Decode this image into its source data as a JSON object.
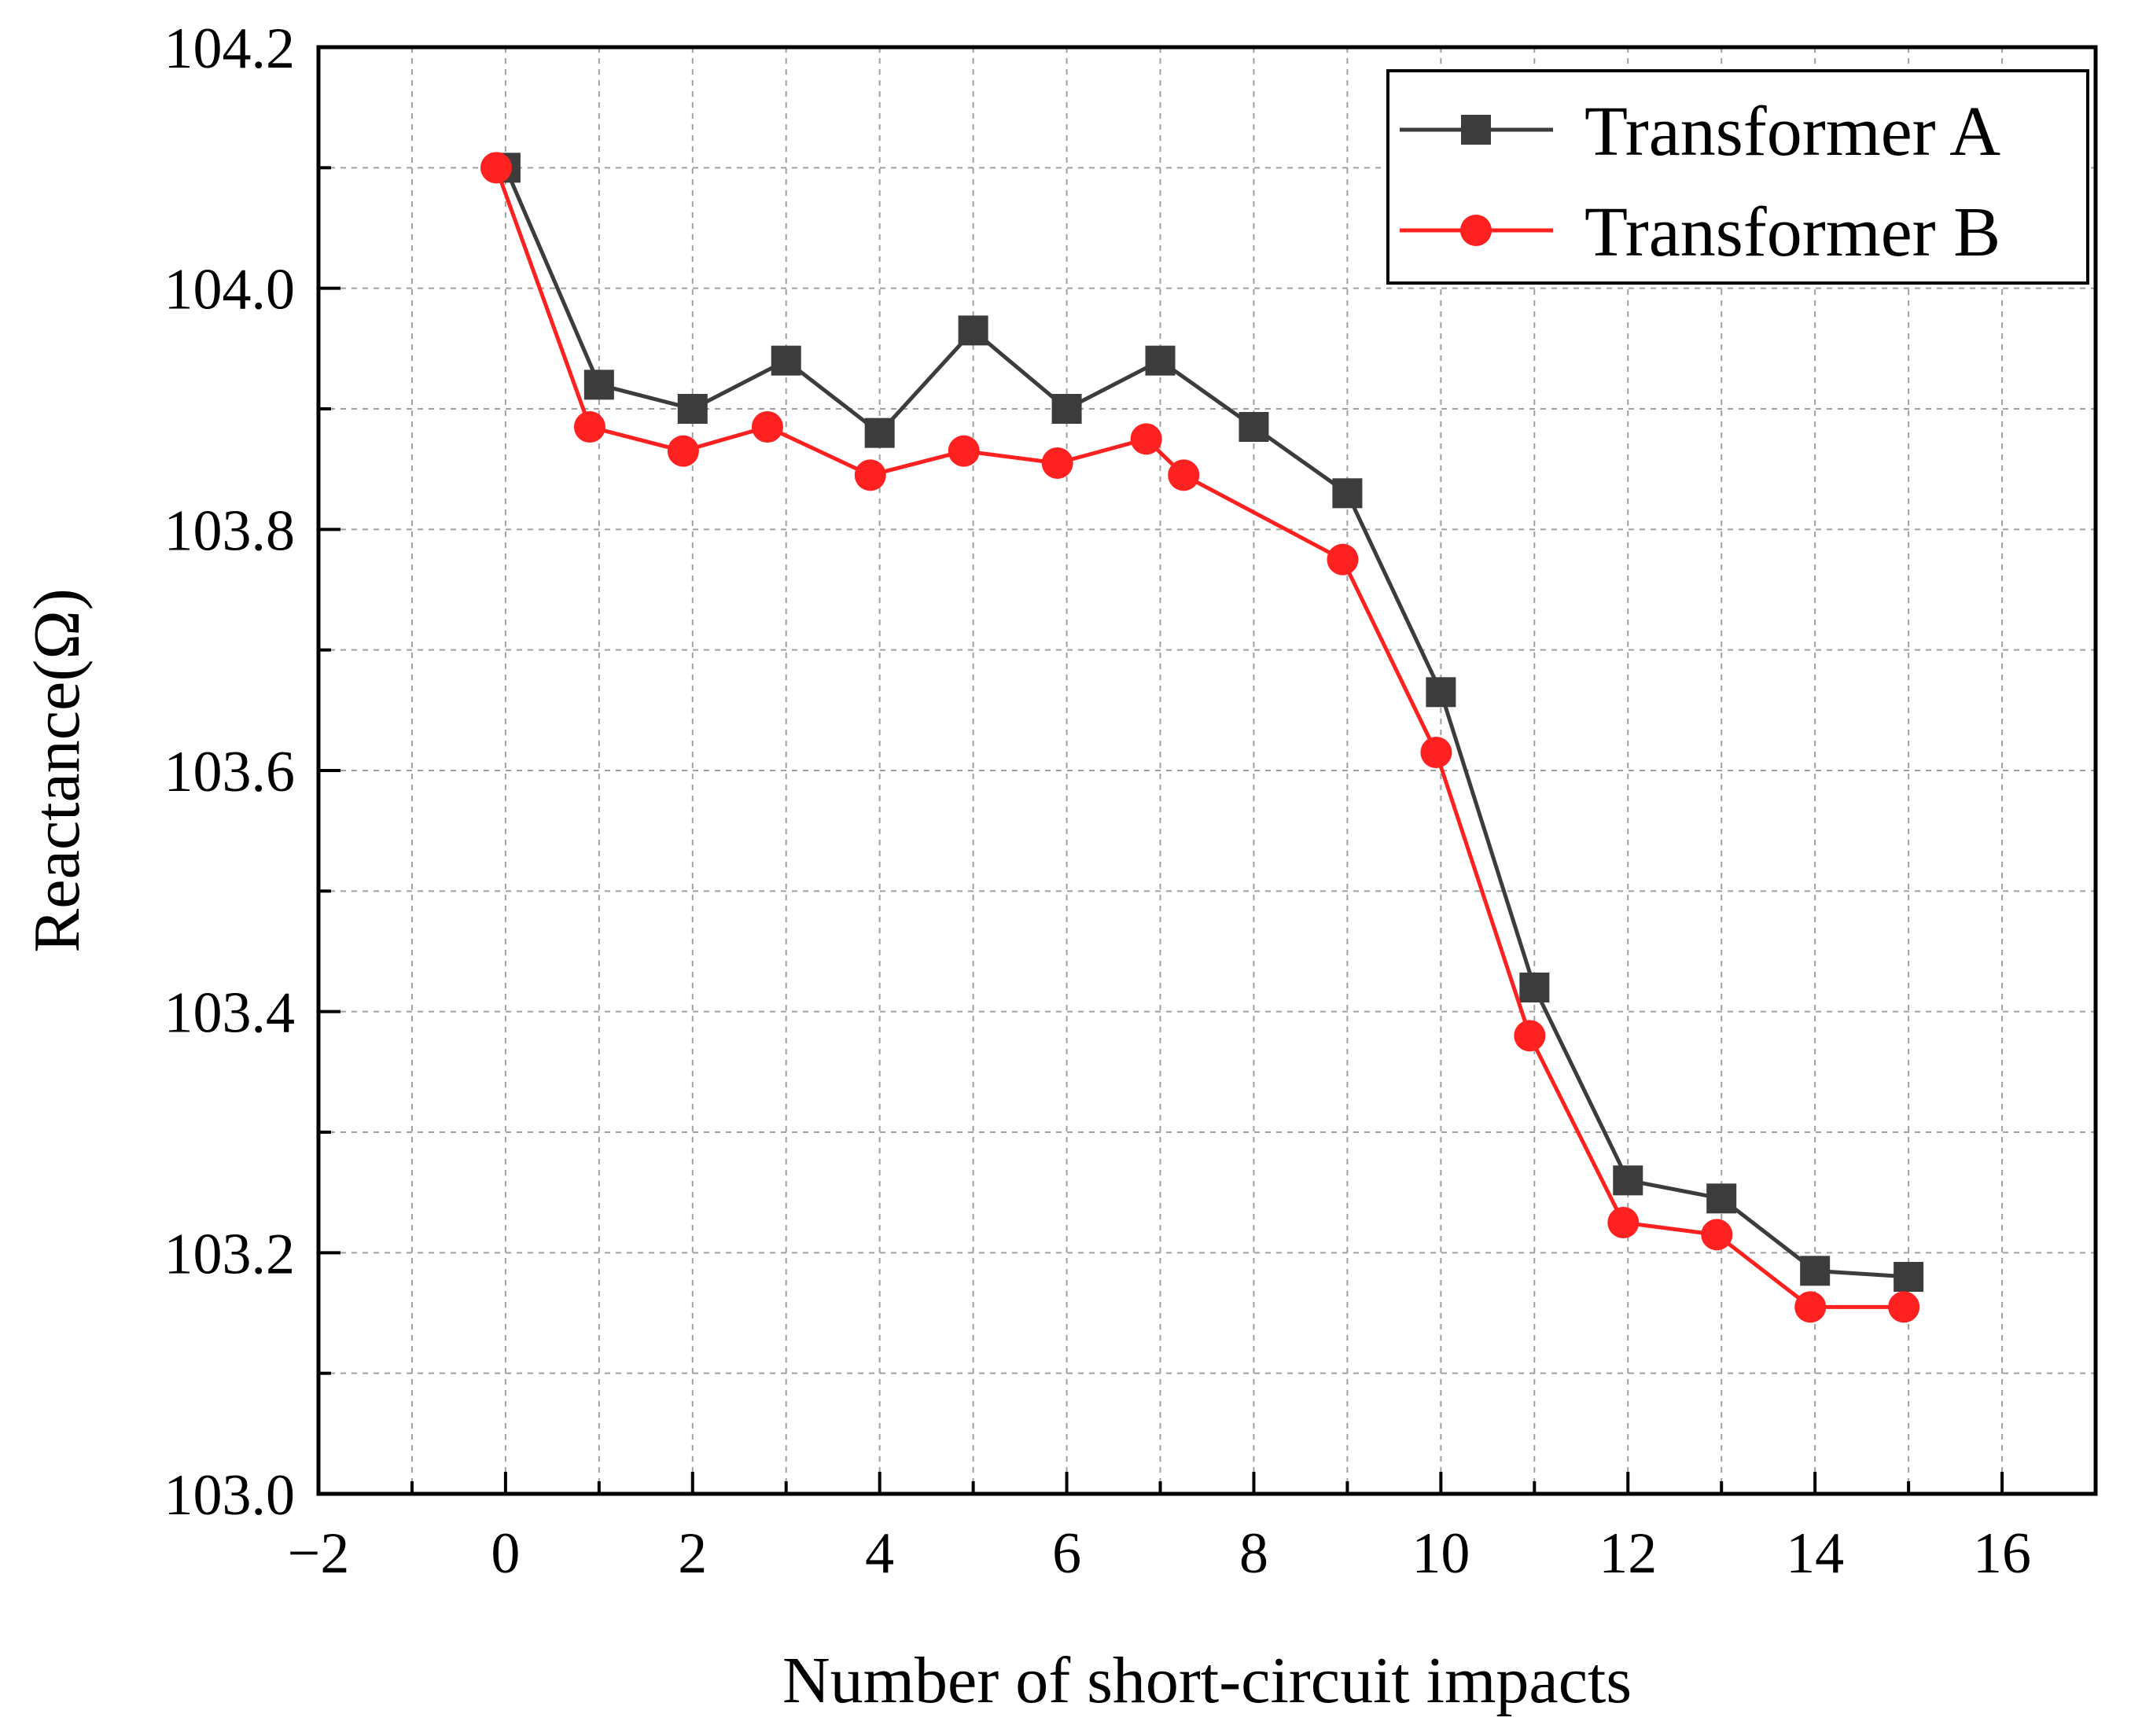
{
  "chart_data": {
    "type": "line",
    "title": "",
    "xlabel": "Number of short-circuit impacts",
    "ylabel": "Reactance(Ω)",
    "xlim": [
      -2,
      17
    ],
    "ylim": [
      103.0,
      104.2
    ],
    "xticks": [
      -2,
      0,
      2,
      4,
      6,
      8,
      10,
      12,
      14,
      16
    ],
    "xtick_labels": [
      "−2",
      "0",
      "2",
      "4",
      "6",
      "8",
      "10",
      "12",
      "14",
      "16"
    ],
    "xminor": [
      -1,
      1,
      3,
      5,
      7,
      9,
      11,
      13,
      15
    ],
    "yticks": [
      103.0,
      103.2,
      103.4,
      103.6,
      103.8,
      104.0,
      104.2
    ],
    "ytick_labels": [
      "103.0",
      "103.2",
      "103.4",
      "103.6",
      "103.8",
      "104.0",
      "104.2"
    ],
    "yminor": [
      103.1,
      103.3,
      103.5,
      103.7,
      103.9,
      104.1
    ],
    "grid": true,
    "legend_position": "top-right",
    "series": [
      {
        "name": "Transformer A",
        "color": "#3c3c3c",
        "marker": "square",
        "x": [
          0,
          1,
          2,
          3,
          4,
          5,
          6,
          7,
          8,
          9,
          10,
          11,
          12,
          13,
          14,
          15
        ],
        "y": [
          104.1,
          103.92,
          103.9,
          103.94,
          103.88,
          103.965,
          103.9,
          103.94,
          103.885,
          103.83,
          103.665,
          103.42,
          103.26,
          103.245,
          103.185,
          103.18
        ]
      },
      {
        "name": "Transformer B",
        "color": "#ff2020",
        "marker": "circle",
        "x": [
          -0.1,
          0.9,
          1.9,
          2.8,
          3.9,
          4.9,
          5.9,
          6.85,
          7.25,
          8.95,
          9.95,
          10.95,
          11.95,
          12.95,
          13.95,
          14.95
        ],
        "y": [
          104.1,
          103.885,
          103.865,
          103.885,
          103.845,
          103.865,
          103.855,
          103.875,
          103.845,
          103.775,
          103.615,
          103.38,
          103.225,
          103.215,
          103.155,
          103.155
        ]
      }
    ]
  }
}
